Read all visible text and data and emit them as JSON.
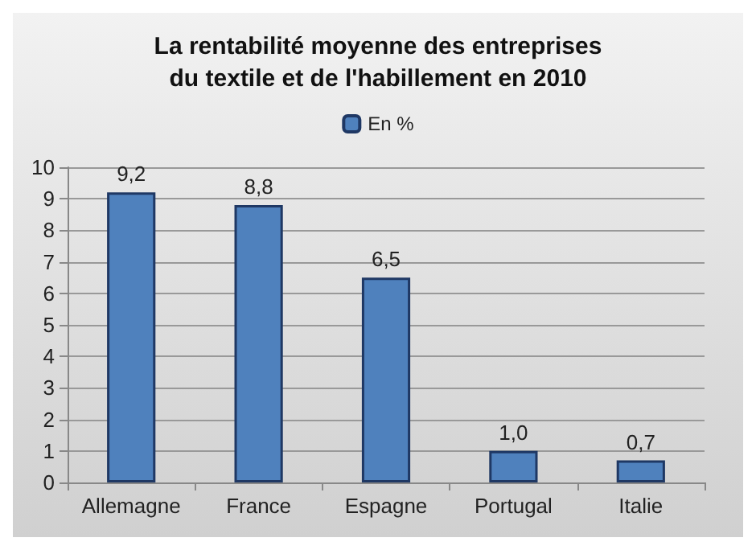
{
  "chart_data": {
    "type": "bar",
    "title": "La rentabilité moyenne des entreprises\ndu textile et de l'habillement en 2010",
    "categories": [
      "Allemagne",
      "France",
      "Espagne",
      "Portugal",
      "Italie"
    ],
    "series": [
      {
        "name": "En %",
        "color": "#4f81bd",
        "values": [
          9.2,
          8.8,
          6.5,
          1.0,
          0.7
        ],
        "value_labels": [
          "9,2",
          "8,8",
          "6,5",
          "1,0",
          "0,7"
        ]
      }
    ],
    "ylim": [
      0,
      10
    ],
    "yticks": [
      0,
      1,
      2,
      3,
      4,
      5,
      6,
      7,
      8,
      9,
      10
    ],
    "grid": "y",
    "legend": "top"
  }
}
